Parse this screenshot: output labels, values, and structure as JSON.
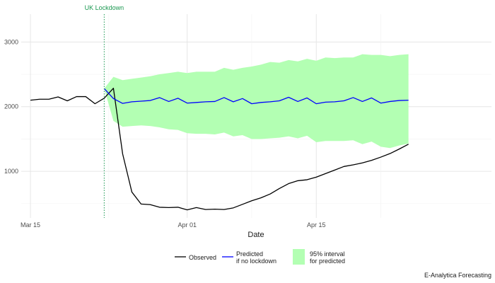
{
  "chart_data": {
    "type": "line",
    "title": "",
    "xlabel": "Date",
    "ylabel": "",
    "x_start": "2020-03-15",
    "x_end": "2020-04-30",
    "xlim": [
      "2020-03-14",
      "2020-05-04"
    ],
    "ylim": [
      280,
      3430
    ],
    "x_ticks": [
      {
        "date": "2020-03-15",
        "label": "Mar 15"
      },
      {
        "date": "2020-04-01",
        "label": "Apr 01"
      },
      {
        "date": "2020-04-15",
        "label": "Apr 15"
      }
    ],
    "y_ticks": [
      1000,
      2000,
      3000
    ],
    "grid": true,
    "legend_position": "bottom",
    "series": [
      {
        "name": "Observed",
        "color": "#000000",
        "values": [
          2100,
          2115,
          2115,
          2150,
          2090,
          2155,
          2155,
          2045,
          2130,
          2285,
          1270,
          680,
          495,
          485,
          445,
          440,
          445,
          405,
          440,
          410,
          415,
          410,
          435,
          490,
          545,
          590,
          650,
          735,
          810,
          855,
          870,
          910,
          965,
          1020,
          1075,
          1100,
          1130,
          1170,
          1220,
          1275,
          1345,
          1420
        ]
      },
      {
        "name": "Predicted\nif no lockdown",
        "color": "#0000ff",
        "values": [
          2280,
          2125,
          2050,
          2075,
          2085,
          2095,
          2140,
          2080,
          2130,
          2055,
          2065,
          2075,
          2080,
          2140,
          2075,
          2125,
          2045,
          2065,
          2075,
          2090,
          2145,
          2080,
          2135,
          2045,
          2070,
          2075,
          2090,
          2140,
          2080,
          2135,
          2055,
          2080,
          2095,
          2100
        ]
      }
    ],
    "interval": {
      "name": "95% interval\nfor predicted",
      "color": "#b3ffb3",
      "lower": [
        2280,
        1780,
        1690,
        1700,
        1710,
        1700,
        1680,
        1650,
        1640,
        1590,
        1580,
        1580,
        1570,
        1600,
        1540,
        1560,
        1500,
        1500,
        1510,
        1520,
        1540,
        1510,
        1550,
        1450,
        1470,
        1470,
        1470,
        1480,
        1420,
        1460,
        1380,
        1360,
        1400,
        1430
      ],
      "upper": [
        2280,
        2460,
        2410,
        2430,
        2450,
        2470,
        2500,
        2520,
        2540,
        2520,
        2540,
        2540,
        2540,
        2600,
        2570,
        2600,
        2620,
        2650,
        2690,
        2680,
        2720,
        2700,
        2740,
        2710,
        2760,
        2750,
        2760,
        2760,
        2810,
        2800,
        2800,
        2780,
        2800,
        2810
      ]
    },
    "annotation": {
      "date": "2020-03-23",
      "label": "UK Lockdown",
      "color": "#1a9850"
    },
    "caption": "E-Analytica Forecasting"
  }
}
